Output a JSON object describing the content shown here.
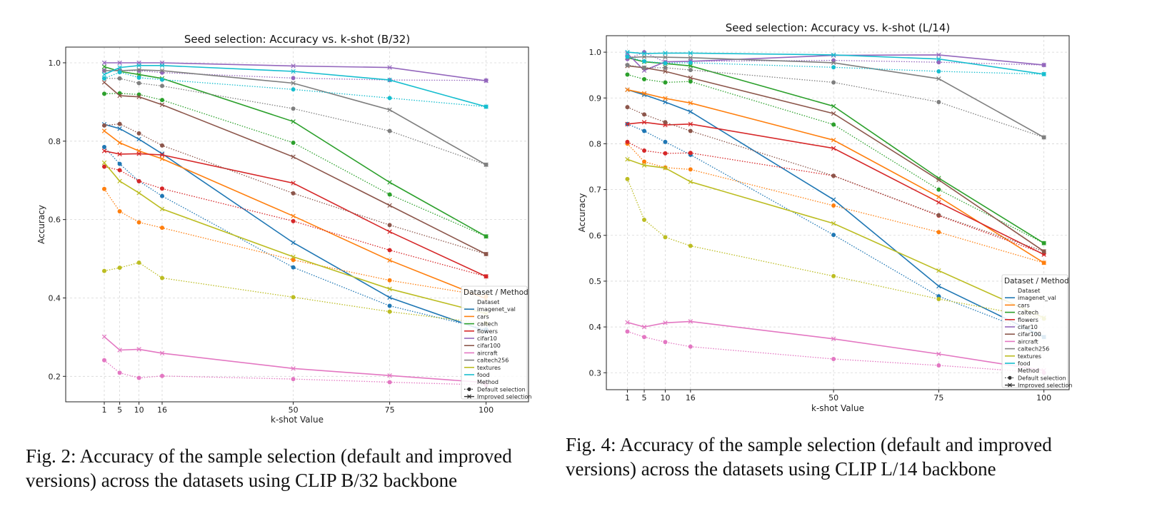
{
  "chart_data": [
    {
      "type": "line",
      "title": "Seed selection: Accuracy vs. k-shot (B/32)",
      "xlabel": "k-shot Value",
      "ylabel": "Accuracy",
      "x": [
        1,
        5,
        10,
        16,
        50,
        75,
        100
      ],
      "xticks": [
        "1",
        "5",
        "10",
        "16",
        "50",
        "75",
        "100"
      ],
      "yticks": [
        "0.2",
        "0.4",
        "0.6",
        "0.8",
        "1.0"
      ],
      "ylim": [
        0.135,
        1.04
      ],
      "xlim": [
        -9,
        111
      ],
      "grid": true,
      "legend": {
        "title": "Dataset / Method",
        "placement": "lower-right",
        "dataset_header": "Dataset",
        "method_header": "Method",
        "methods": [
          "Default selection",
          "Improved selection"
        ]
      },
      "series": [
        {
          "name": "imagenet_val",
          "color": "#1f77b4",
          "default": [
            0.785,
            0.742,
            0.698,
            0.66,
            0.478,
            0.38,
            0.32
          ],
          "improved": [
            0.843,
            0.832,
            0.805,
            0.768,
            0.541,
            0.401,
            0.315
          ]
        },
        {
          "name": "cars",
          "color": "#ff7f0e",
          "default": [
            0.678,
            0.621,
            0.593,
            0.579,
            0.497,
            0.445,
            0.405
          ],
          "improved": [
            0.826,
            0.796,
            0.775,
            0.755,
            0.609,
            0.496,
            0.398
          ]
        },
        {
          "name": "caltech",
          "color": "#2ca02c",
          "default": [
            0.921,
            0.922,
            0.919,
            0.905,
            0.796,
            0.664,
            0.557
          ],
          "improved": [
            0.99,
            0.978,
            0.97,
            0.96,
            0.85,
            0.695,
            0.557
          ]
        },
        {
          "name": "flowers",
          "color": "#d62728",
          "default": [
            0.735,
            0.726,
            0.698,
            0.679,
            0.596,
            0.522,
            0.455
          ],
          "improved": [
            0.775,
            0.767,
            0.768,
            0.765,
            0.693,
            0.569,
            0.455
          ]
        },
        {
          "name": "cifar10",
          "color": "#9467bd",
          "default": [
            0.98,
            0.98,
            0.98,
            0.975,
            0.961,
            0.956,
            0.955
          ],
          "improved": [
            1.0,
            1.0,
            1.0,
            1.0,
            0.992,
            0.988,
            0.954
          ]
        },
        {
          "name": "cifar100",
          "color": "#8c564b",
          "default": [
            0.84,
            0.844,
            0.82,
            0.789,
            0.667,
            0.586,
            0.512
          ],
          "improved": [
            0.95,
            0.916,
            0.913,
            0.893,
            0.76,
            0.636,
            0.512
          ]
        },
        {
          "name": "aircraft",
          "color": "#e377c2",
          "default": [
            0.241,
            0.209,
            0.196,
            0.201,
            0.193,
            0.185,
            0.178
          ],
          "improved": [
            0.301,
            0.267,
            0.269,
            0.259,
            0.22,
            0.202,
            0.184
          ]
        },
        {
          "name": "caltech256",
          "color": "#7f7f7f",
          "default": [
            0.96,
            0.96,
            0.948,
            0.941,
            0.883,
            0.826,
            0.74
          ],
          "improved": [
            0.98,
            0.98,
            0.982,
            0.98,
            0.948,
            0.88,
            0.74
          ]
        },
        {
          "name": "textures",
          "color": "#bcbd22",
          "default": [
            0.469,
            0.477,
            0.49,
            0.451,
            0.402,
            0.365,
            0.335
          ],
          "improved": [
            0.745,
            0.698,
            0.668,
            0.627,
            0.505,
            0.423,
            0.36
          ]
        },
        {
          "name": "food",
          "color": "#17becf",
          "default": [
            0.96,
            0.976,
            0.962,
            0.957,
            0.932,
            0.91,
            0.888
          ],
          "improved": [
            0.97,
            0.988,
            0.993,
            0.993,
            0.978,
            0.956,
            0.888
          ]
        }
      ]
    },
    {
      "type": "line",
      "title": "Seed selection: Accuracy vs. k-shot (L/14)",
      "xlabel": "k-shot Value",
      "ylabel": "Accuracy",
      "x": [
        1,
        5,
        10,
        16,
        50,
        75,
        100
      ],
      "xticks": [
        "1",
        "5",
        "10",
        "16",
        "50",
        "75",
        "100"
      ],
      "yticks": [
        "0.3",
        "0.4",
        "0.5",
        "0.6",
        "0.7",
        "0.8",
        "0.9",
        "1.0"
      ],
      "ylim": [
        0.263,
        1.036
      ],
      "xlim": [
        -4,
        106
      ],
      "grid": true,
      "legend": {
        "title": "Dataset / Method",
        "placement": "lower-right",
        "dataset_header": "Dataset",
        "method_header": "Method",
        "methods": [
          "Default selection",
          "Improved selection"
        ]
      },
      "series": [
        {
          "name": "imagenet_val",
          "color": "#1f77b4",
          "default": [
            0.843,
            0.828,
            0.804,
            0.776,
            0.601,
            0.467,
            0.378
          ],
          "improved": [
            0.918,
            0.907,
            0.891,
            0.87,
            0.678,
            0.489,
            0.378
          ]
        },
        {
          "name": "cars",
          "color": "#ff7f0e",
          "default": [
            0.8,
            0.761,
            0.748,
            0.744,
            0.665,
            0.607,
            0.54
          ],
          "improved": [
            0.918,
            0.91,
            0.899,
            0.889,
            0.808,
            0.684,
            0.54
          ]
        },
        {
          "name": "caltech",
          "color": "#2ca02c",
          "default": [
            0.951,
            0.941,
            0.934,
            0.936,
            0.842,
            0.7,
            0.583
          ],
          "improved": [
            0.988,
            0.979,
            0.975,
            0.97,
            0.882,
            0.725,
            0.583
          ]
        },
        {
          "name": "flowers",
          "color": "#d62728",
          "default": [
            0.804,
            0.785,
            0.779,
            0.78,
            0.73,
            0.643,
            0.56
          ],
          "improved": [
            0.843,
            0.847,
            0.841,
            0.843,
            0.79,
            0.672,
            0.558
          ]
        },
        {
          "name": "cifar10",
          "color": "#9467bd",
          "default": [
            0.985,
            1.0,
            0.978,
            0.98,
            0.982,
            0.978,
            0.972
          ],
          "improved": [
            0.997,
            0.96,
            0.979,
            0.98,
            0.993,
            0.994,
            0.972
          ]
        },
        {
          "name": "cifar100",
          "color": "#8c564b",
          "default": [
            0.88,
            0.864,
            0.847,
            0.828,
            0.73,
            0.644,
            0.565
          ],
          "improved": [
            0.97,
            0.966,
            0.958,
            0.944,
            0.866,
            0.721,
            0.565
          ]
        },
        {
          "name": "aircraft",
          "color": "#e377c2",
          "default": [
            0.39,
            0.378,
            0.367,
            0.357,
            0.33,
            0.316,
            0.3
          ],
          "improved": [
            0.41,
            0.4,
            0.409,
            0.412,
            0.374,
            0.341,
            0.305
          ]
        },
        {
          "name": "caltech256",
          "color": "#7f7f7f",
          "default": [
            0.972,
            0.966,
            0.966,
            0.961,
            0.934,
            0.891,
            0.814
          ],
          "improved": [
            0.988,
            0.99,
            0.989,
            0.988,
            0.977,
            0.942,
            0.814
          ]
        },
        {
          "name": "textures",
          "color": "#bcbd22",
          "default": [
            0.723,
            0.634,
            0.596,
            0.577,
            0.511,
            0.461,
            0.418
          ],
          "improved": [
            0.766,
            0.753,
            0.747,
            0.717,
            0.626,
            0.523,
            0.42
          ]
        },
        {
          "name": "food",
          "color": "#17becf",
          "default": [
            0.99,
            0.98,
            0.976,
            0.977,
            0.967,
            0.958,
            0.952
          ],
          "improved": [
            1.0,
            0.997,
            0.998,
            0.998,
            0.994,
            0.985,
            0.952
          ]
        }
      ]
    }
  ],
  "captions": {
    "left": "Fig. 2: Accuracy of the sample selection (default and improved versions) across the datasets using CLIP B/32 backbone",
    "right": "Fig. 4: Accuracy of the sample selection (default and improved versions) across the datasets using CLIP L/14 backbone"
  }
}
